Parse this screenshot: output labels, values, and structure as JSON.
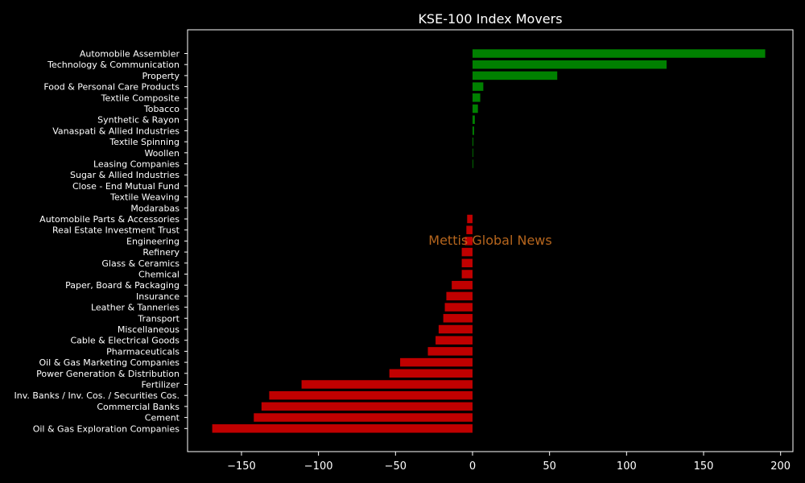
{
  "chart_data": {
    "type": "bar",
    "orientation": "horizontal",
    "title": "KSE-100 Index Movers",
    "xlabel": "",
    "ylabel": "",
    "xlim": [
      -185,
      208
    ],
    "xticks": [
      -150,
      -100,
      -50,
      0,
      50,
      100,
      150,
      200
    ],
    "xtick_labels": [
      "−150",
      "−100",
      "−50",
      "0",
      "50",
      "100",
      "150",
      "200"
    ],
    "grid": false,
    "legend": "none",
    "watermark": "Mettis Global News",
    "colors": {
      "background": "#000000",
      "positive": "#008000",
      "negative": "#c00000",
      "text": "#ffffff",
      "watermark": "#b5651d",
      "axes": "#ffffff"
    },
    "categories": [
      "Automobile Assembler",
      "Technology & Communication",
      "Property",
      "Food & Personal Care Products",
      "Textile Composite",
      "Tobacco",
      "Synthetic & Rayon",
      "Vanaspati & Allied Industries",
      "Textile Spinning",
      "Woollen",
      "Leasing Companies",
      "Sugar & Allied Industries",
      "Close - End Mutual Fund",
      "Textile Weaving",
      "Modarabas",
      "Automobile Parts & Accessories",
      "Real Estate Investment Trust",
      "Engineering",
      "Refinery",
      "Glass & Ceramics",
      "Chemical",
      "Paper, Board & Packaging",
      "Insurance",
      "Leather & Tanneries",
      "Transport",
      "Miscellaneous",
      "Cable & Electrical Goods",
      "Pharmaceuticals",
      "Oil & Gas Marketing Companies",
      "Power Generation & Distribution",
      "Fertilizer",
      "Inv. Banks / Inv. Cos. / Securities Cos.",
      "Commercial Banks",
      "Cement",
      "Oil & Gas Exploration Companies"
    ],
    "values": [
      190,
      126,
      55,
      7,
      5,
      3.5,
      1.5,
      1,
      0.5,
      0.4,
      0.3,
      0,
      0,
      0,
      0,
      -3.5,
      -4,
      -5,
      -7,
      -7,
      -7,
      -13.5,
      -17,
      -18,
      -19,
      -22,
      -24,
      -29,
      -47,
      -54,
      -111,
      -132,
      -137,
      -142,
      -169
    ]
  }
}
